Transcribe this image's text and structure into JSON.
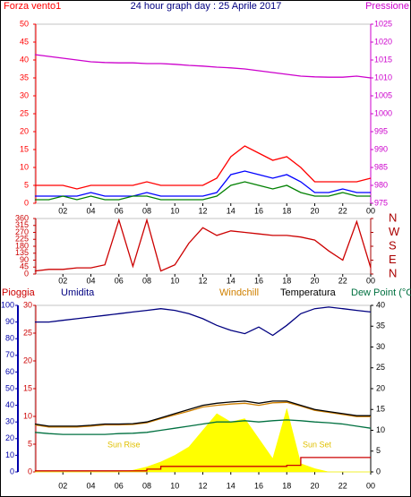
{
  "chart_data": [
    {
      "type": "line",
      "title": "24 hour graph day : 25 Aprile 2017",
      "xlim": [
        0,
        24
      ],
      "xticks": [
        {
          "value": 2,
          "label": "02"
        },
        {
          "value": 4,
          "label": "04"
        },
        {
          "value": 6,
          "label": "06"
        },
        {
          "value": 8,
          "label": "08"
        },
        10,
        12,
        14,
        16,
        18,
        20,
        22,
        {
          "value": 24,
          "label": "00"
        }
      ],
      "x": [
        0,
        1,
        2,
        3,
        4,
        5,
        6,
        7,
        8,
        9,
        10,
        11,
        12,
        13,
        14,
        15,
        16,
        17,
        18,
        19,
        20,
        21,
        22,
        23,
        24
      ],
      "ylim": [
        0,
        50
      ],
      "yticks": [
        0,
        5,
        10,
        15,
        20,
        25,
        30,
        35,
        40,
        45,
        50
      ],
      "ytick_color": "#ff0000",
      "y2lim": [
        975,
        1025
      ],
      "y2ticks": [
        975,
        980,
        985,
        990,
        995,
        1000,
        1005,
        1010,
        1015,
        1020,
        1025
      ],
      "y2tick_color": "#cc00cc",
      "series": [
        {
          "name": "Forza vento1",
          "color": "#ff0000",
          "values": [
            5,
            5,
            5,
            4,
            5,
            5,
            5,
            5,
            6,
            5,
            5,
            5,
            5,
            7,
            13,
            16,
            14,
            12,
            13,
            10,
            6,
            6,
            6,
            6,
            7
          ]
        },
        {
          "color": "#0000ff",
          "values": [
            2,
            2,
            2,
            2,
            3,
            2,
            2,
            2,
            3,
            2,
            2,
            2,
            2,
            3,
            8,
            9,
            8,
            7,
            8,
            6,
            3,
            3,
            4,
            3,
            3
          ]
        },
        {
          "color": "#008000",
          "values": [
            1,
            1,
            2,
            1,
            2,
            1,
            1,
            2,
            2,
            1,
            1,
            1,
            1,
            2,
            5,
            6,
            5,
            4,
            5,
            3,
            2,
            2,
            3,
            2,
            2
          ]
        },
        {
          "name": "Pressione",
          "color": "#cc00cc",
          "axis": "y2",
          "values": [
            1016.5,
            1016,
            1015.5,
            1015,
            1014.5,
            1014.3,
            1014.2,
            1014.2,
            1014,
            1014,
            1013.8,
            1013.5,
            1013.3,
            1013,
            1012.8,
            1012.5,
            1012,
            1011.5,
            1011,
            1010.5,
            1010.3,
            1010.2,
            1010.2,
            1010.5,
            1010
          ]
        }
      ]
    },
    {
      "type": "line",
      "xlim": [
        0,
        24
      ],
      "xticks": [
        {
          "value": 2,
          "label": "02"
        },
        {
          "value": 4,
          "label": "04"
        },
        {
          "value": 6,
          "label": "06"
        },
        {
          "value": 8,
          "label": "08"
        },
        10,
        12,
        14,
        16,
        18,
        20,
        22,
        {
          "value": 24,
          "label": "00"
        }
      ],
      "x": [
        0,
        1,
        2,
        3,
        4,
        5,
        6,
        7,
        8,
        9,
        10,
        11,
        12,
        13,
        14,
        15,
        16,
        17,
        18,
        19,
        20,
        21,
        22,
        23,
        24
      ],
      "ylim": [
        0,
        360
      ],
      "yticks": [
        0,
        45,
        90,
        135,
        180,
        225,
        270,
        315,
        360
      ],
      "ytick_color": "#cc0000",
      "y2lim": [
        0,
        360
      ],
      "y2ticks": [
        {
          "value": 0,
          "label": "N"
        },
        {
          "value": 90,
          "label": "E"
        },
        {
          "value": 180,
          "label": "S"
        },
        {
          "value": 270,
          "label": "W"
        },
        {
          "value": 360,
          "label": "N"
        }
      ],
      "y2tick_color": "#aa0000",
      "series": [
        {
          "color": "#cc0000",
          "values": [
            20,
            30,
            30,
            40,
            40,
            60,
            350,
            50,
            350,
            20,
            60,
            200,
            300,
            250,
            280,
            270,
            260,
            250,
            250,
            240,
            220,
            150,
            90,
            340,
            40
          ]
        }
      ]
    },
    {
      "type": "line",
      "xlim": [
        0,
        24
      ],
      "xticks": [
        {
          "value": 2,
          "label": "02"
        },
        {
          "value": 4,
          "label": "04"
        },
        {
          "value": 6,
          "label": "06"
        },
        {
          "value": 8,
          "label": "08"
        },
        10,
        12,
        14,
        16,
        18,
        20,
        22,
        {
          "value": 24,
          "label": "00"
        }
      ],
      "x": [
        0,
        1,
        2,
        3,
        4,
        5,
        6,
        7,
        8,
        9,
        10,
        11,
        12,
        13,
        14,
        15,
        16,
        17,
        18,
        19,
        20,
        21,
        22,
        23,
        24
      ],
      "ylim": [
        0,
        100
      ],
      "yticks": [
        0,
        10,
        20,
        30,
        40,
        50,
        60,
        70,
        80,
        90,
        100
      ],
      "ytick_color": "#0000aa",
      "y3lim": [
        0,
        30
      ],
      "y3ticks": [
        0,
        5,
        10,
        15,
        20,
        25,
        30
      ],
      "y3tick_color": "#cc0000",
      "y2lim": [
        0,
        40
      ],
      "y2ticks": [
        0,
        5,
        10,
        15,
        20,
        25,
        30,
        35,
        40
      ],
      "y2tick_color": "#000000",
      "annotations": [
        "Sun Rise",
        "Sun Set"
      ],
      "series": [
        {
          "color": "#ffff00",
          "style": "area",
          "values": [
            0,
            0,
            0,
            0,
            0,
            0,
            0,
            1,
            3,
            6,
            10,
            15,
            25,
            35,
            30,
            32,
            20,
            8,
            38,
            5,
            2,
            0,
            0,
            0,
            0
          ]
        },
        {
          "name": "Pioggia",
          "color": "#cc0000",
          "axis": "y3",
          "step": true,
          "values": [
            0.2,
            0.2,
            0.2,
            0.2,
            0.2,
            0.2,
            0.2,
            0.2,
            0.5,
            1,
            1,
            1,
            1,
            1,
            1,
            1,
            1,
            1,
            1.2,
            2.6,
            2.6,
            2.6,
            2.6,
            2.6,
            2.6
          ]
        },
        {
          "name": "Umidita",
          "color": "#000080",
          "values": [
            90,
            90,
            91,
            92,
            93,
            94,
            95,
            96,
            97,
            98,
            97,
            95,
            92,
            88,
            85,
            83,
            87,
            82,
            88,
            95,
            98,
            99,
            98,
            97,
            96
          ]
        },
        {
          "name": "Windchill",
          "color": "#d08000",
          "axis": "y2",
          "values": [
            11.3,
            10.8,
            10.8,
            10.8,
            11,
            11.3,
            11.3,
            11.4,
            11.8,
            12.8,
            13.7,
            14.6,
            15.6,
            16,
            16.3,
            16.5,
            16,
            16.6,
            16.7,
            15.8,
            14.8,
            14.3,
            13.8,
            13.3,
            13.3
          ]
        },
        {
          "name": "Temperatura",
          "color": "#000000",
          "axis": "y2",
          "values": [
            11.5,
            11,
            11,
            11,
            11.2,
            11.5,
            11.5,
            11.6,
            12,
            13,
            14,
            15,
            16,
            16.5,
            16.8,
            17,
            16.5,
            17,
            17,
            16,
            15,
            14.5,
            14,
            13.5,
            13.5
          ]
        },
        {
          "name": "Dew Point (°C",
          "color": "#007040",
          "axis": "y2",
          "values": [
            9.5,
            9.2,
            9,
            9,
            9,
            9,
            9.2,
            9.3,
            9.5,
            10,
            10.5,
            11,
            11.5,
            12,
            12,
            12.3,
            12,
            12.3,
            12.5,
            12.3,
            12,
            11.8,
            11.5,
            11,
            10.5
          ]
        }
      ]
    }
  ]
}
